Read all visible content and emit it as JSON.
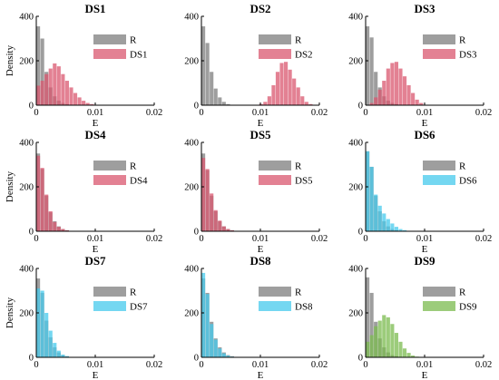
{
  "colors": {
    "reference": "#9e9e9e",
    "red": "#d9576f",
    "blue": "#45c9ec",
    "green": "#7bbb4f"
  },
  "chart_data": [
    {
      "type": "bar",
      "title": "DS1",
      "xlabel": "E",
      "ylabel": "Density",
      "xlim": [
        0,
        0.02
      ],
      "ylim": [
        0,
        400
      ],
      "xticks": [
        "0",
        "0.01",
        "0.02"
      ],
      "yticks": [
        "0",
        "200",
        "400"
      ],
      "bin_width": 0.0007,
      "bin_start": 0,
      "legend_position": "top-right",
      "color": "red",
      "series": [
        {
          "name": "R",
          "values": [
            355,
            300,
            150,
            80,
            40,
            20,
            10,
            5,
            2
          ]
        },
        {
          "name": "DS1",
          "values": [
            88,
            110,
            140,
            165,
            188,
            175,
            140,
            110,
            80,
            55,
            35,
            20,
            10,
            5
          ]
        }
      ]
    },
    {
      "type": "bar",
      "title": "DS2",
      "xlabel": "E",
      "ylabel": "",
      "xlim": [
        0,
        0.02
      ],
      "ylim": [
        0,
        400
      ],
      "xticks": [
        "0",
        "0.01",
        "0.02"
      ],
      "yticks": [
        "0",
        "200",
        "400"
      ],
      "bin_width": 0.0007,
      "bin_start": 0,
      "legend_position": "top-right",
      "color": "red",
      "series": [
        {
          "name": "R",
          "values": [
            355,
            280,
            150,
            75,
            35,
            15,
            5
          ]
        },
        {
          "name": "DS2",
          "values": [
            5,
            15,
            40,
            90,
            150,
            190,
            195,
            160,
            120,
            80,
            40,
            15,
            5
          ],
          "start": 0.0098
        }
      ]
    },
    {
      "type": "bar",
      "title": "DS3",
      "xlabel": "E",
      "ylabel": "",
      "xlim": [
        0,
        0.02
      ],
      "ylim": [
        0,
        400
      ],
      "xticks": [
        "0",
        "0.01",
        "0.02"
      ],
      "yticks": [
        "0",
        "200",
        "400"
      ],
      "bin_width": 0.0007,
      "bin_start": 0,
      "legend_position": "top-right",
      "color": "red",
      "series": [
        {
          "name": "R",
          "values": [
            355,
            305,
            150,
            80,
            40,
            20,
            10,
            5
          ]
        },
        {
          "name": "DS3",
          "values": [
            10,
            35,
            70,
            110,
            165,
            190,
            195,
            165,
            130,
            90,
            55,
            25,
            10
          ],
          "start": 0.0007
        }
      ]
    },
    {
      "type": "bar",
      "title": "DS4",
      "xlabel": "E",
      "ylabel": "Density",
      "xlim": [
        0,
        0.02
      ],
      "ylim": [
        0,
        400
      ],
      "xticks": [
        "0",
        "0.01",
        "0.02"
      ],
      "yticks": [
        "0",
        "200",
        "400"
      ],
      "bin_width": 0.0007,
      "bin_start": 0,
      "legend_position": "top-right",
      "color": "red",
      "series": [
        {
          "name": "R",
          "values": [
            350,
            280,
            160,
            85,
            45,
            22,
            10,
            5,
            2
          ]
        },
        {
          "name": "DS4",
          "values": [
            340,
            285,
            165,
            90,
            42,
            20,
            10,
            4,
            1
          ]
        }
      ]
    },
    {
      "type": "bar",
      "title": "DS5",
      "xlabel": "E",
      "ylabel": "",
      "xlim": [
        0,
        0.02
      ],
      "ylim": [
        0,
        400
      ],
      "xticks": [
        "0",
        "0.01",
        "0.02"
      ],
      "yticks": [
        "0",
        "200",
        "400"
      ],
      "bin_width": 0.0007,
      "bin_start": 0,
      "legend_position": "top-right",
      "color": "red",
      "series": [
        {
          "name": "R",
          "values": [
            350,
            275,
            160,
            90,
            45,
            22,
            10,
            5,
            2
          ]
        },
        {
          "name": "DS5",
          "values": [
            330,
            280,
            170,
            95,
            48,
            22,
            10,
            4,
            1
          ]
        }
      ]
    },
    {
      "type": "bar",
      "title": "DS6",
      "xlabel": "E",
      "ylabel": "",
      "xlim": [
        0,
        0.02
      ],
      "ylim": [
        0,
        400
      ],
      "xticks": [
        "0",
        "0.01",
        "0.02"
      ],
      "yticks": [
        "0",
        "200",
        "400"
      ],
      "bin_width": 0.0007,
      "bin_start": 0,
      "legend_position": "top-right",
      "color": "blue",
      "series": [
        {
          "name": "R",
          "values": [
            360,
            290,
            160,
            90,
            45,
            22,
            10,
            5,
            2
          ]
        },
        {
          "name": "DS6",
          "values": [
            360,
            290,
            165,
            115,
            80,
            55,
            35,
            20,
            10,
            5
          ]
        }
      ]
    },
    {
      "type": "bar",
      "title": "DS7",
      "xlabel": "E",
      "ylabel": "Density",
      "xlim": [
        0,
        0.02
      ],
      "ylim": [
        0,
        400
      ],
      "xticks": [
        "0",
        "0.01",
        "0.02"
      ],
      "yticks": [
        "0",
        "200",
        "400"
      ],
      "bin_width": 0.0007,
      "bin_start": 0,
      "legend_position": "top-right",
      "color": "blue",
      "series": [
        {
          "name": "R",
          "values": [
            355,
            290,
            165,
            90,
            45,
            22,
            10,
            5,
            2
          ]
        },
        {
          "name": "DS7",
          "values": [
            310,
            300,
            200,
            120,
            65,
            30,
            12,
            5
          ]
        }
      ]
    },
    {
      "type": "bar",
      "title": "DS8",
      "xlabel": "E",
      "ylabel": "",
      "xlim": [
        0,
        0.02
      ],
      "ylim": [
        0,
        400
      ],
      "xticks": [
        "0",
        "0.01",
        "0.02"
      ],
      "yticks": [
        "0",
        "200",
        "400"
      ],
      "bin_width": 0.0007,
      "bin_start": 0,
      "legend_position": "top-right",
      "color": "blue",
      "series": [
        {
          "name": "R",
          "values": [
            355,
            290,
            160,
            85,
            45,
            22,
            10,
            5,
            2
          ]
        },
        {
          "name": "DS8",
          "values": [
            380,
            285,
            150,
            80,
            40,
            18,
            8,
            3
          ]
        }
      ]
    },
    {
      "type": "bar",
      "title": "DS9",
      "xlabel": "E",
      "ylabel": "",
      "xlim": [
        0,
        0.02
      ],
      "ylim": [
        0,
        400
      ],
      "xticks": [
        "0",
        "0.01",
        "0.02"
      ],
      "yticks": [
        "0",
        "200",
        "400"
      ],
      "bin_width": 0.0007,
      "bin_start": 0,
      "legend_position": "top-right",
      "color": "green",
      "series": [
        {
          "name": "R",
          "values": [
            360,
            290,
            160,
            85,
            45,
            22,
            10,
            5,
            2
          ]
        },
        {
          "name": "DS9",
          "values": [
            70,
            100,
            140,
            165,
            190,
            180,
            150,
            110,
            70,
            40,
            20,
            8,
            3
          ]
        }
      ]
    }
  ]
}
